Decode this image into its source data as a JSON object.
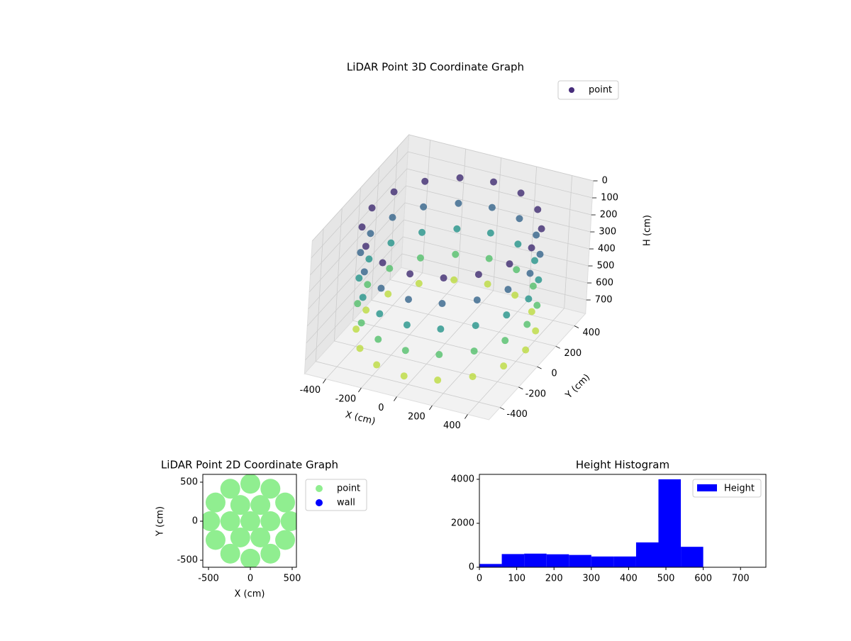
{
  "chart_data": [
    {
      "type": "scatter3d",
      "title": "LiDAR Point 3D Coordinate Graph",
      "xlabel": "X (cm)",
      "ylabel": "Y (cm)",
      "zlabel": "H (cm)",
      "xlim": [
        -520,
        520
      ],
      "ylim": [
        -520,
        520
      ],
      "zlim": [
        0,
        780
      ],
      "zinverted": true,
      "xticks": [
        -400,
        -200,
        0,
        200,
        400
      ],
      "yticks": [
        -400,
        -200,
        0,
        200,
        400
      ],
      "zticks": [
        0,
        100,
        200,
        300,
        400,
        500,
        600,
        700
      ],
      "grid": true,
      "legend": "upper right",
      "colormap": "viridis",
      "series": [
        {
          "name": "point",
          "color": "#472d7b",
          "x": [
            450,
            416,
            318,
            172,
            0,
            -172,
            -318,
            -416,
            -450,
            -416,
            -318,
            -172,
            0,
            172,
            318,
            416,
            450,
            416,
            318,
            172,
            0,
            -172,
            -318,
            -416,
            -450,
            -416,
            -318,
            -172,
            0,
            172,
            318,
            416,
            450,
            416,
            318,
            172,
            0,
            -172,
            -318,
            -416,
            -450,
            -416,
            -318,
            -172,
            0,
            172,
            318,
            416,
            450,
            416,
            318,
            172,
            0,
            -172,
            -318,
            -416,
            -450,
            -416,
            -318,
            -172,
            0,
            172,
            318,
            416,
            450,
            416,
            318,
            172,
            0,
            -172,
            -318,
            -416,
            -450,
            -416,
            -318,
            -172,
            0,
            172,
            318,
            416
          ],
          "y": [
            0,
            172,
            318,
            416,
            450,
            416,
            318,
            172,
            0,
            -172,
            -318,
            -416,
            -450,
            -416,
            -318,
            -172,
            0,
            172,
            318,
            416,
            450,
            416,
            318,
            172,
            0,
            -172,
            -318,
            -416,
            -450,
            -416,
            -318,
            -172,
            0,
            172,
            318,
            416,
            450,
            416,
            318,
            172,
            0,
            -172,
            -318,
            -416,
            -450,
            -416,
            -318,
            -172,
            0,
            172,
            318,
            416,
            450,
            416,
            318,
            172,
            0,
            -172,
            -318,
            -416,
            -450,
            -416,
            -318,
            -172,
            0,
            172,
            318,
            416,
            450,
            416,
            318,
            172,
            0,
            -172,
            -318,
            -416,
            -450,
            -416,
            -318,
            -172
          ],
          "h": [
            100,
            100,
            100,
            100,
            100,
            100,
            100,
            100,
            100,
            100,
            100,
            100,
            100,
            100,
            100,
            100,
            250,
            250,
            250,
            250,
            250,
            250,
            250,
            250,
            250,
            250,
            250,
            250,
            250,
            250,
            250,
            250,
            400,
            400,
            400,
            400,
            400,
            400,
            400,
            400,
            400,
            400,
            400,
            400,
            400,
            400,
            400,
            400,
            550,
            550,
            550,
            550,
            550,
            550,
            550,
            550,
            550,
            550,
            550,
            550,
            550,
            550,
            550,
            550,
            700,
            700,
            700,
            700,
            700,
            700,
            700,
            700,
            700,
            700,
            700,
            700,
            700,
            700,
            700,
            700
          ]
        }
      ]
    },
    {
      "type": "scatter",
      "title": "LiDAR Point 2D Coordinate Graph",
      "xlabel": "X (cm)",
      "ylabel": "Y (cm)",
      "xlim": [
        -568,
        551
      ],
      "ylim": [
        -590,
        600
      ],
      "xticks": [
        -500,
        0,
        500
      ],
      "yticks": [
        -500,
        0,
        500
      ],
      "legend": "outside right",
      "series": [
        {
          "name": "point",
          "color": "#90ee90",
          "x": [
            480,
            416,
            240,
            0,
            -240,
            -416,
            -480,
            -416,
            -240,
            0,
            240,
            416,
            240,
            120,
            -120,
            -240,
            -120,
            120,
            0
          ],
          "y": [
            0,
            240,
            416,
            480,
            416,
            240,
            0,
            -240,
            -416,
            -480,
            -416,
            -240,
            0,
            208,
            208,
            0,
            -208,
            -208,
            0
          ]
        },
        {
          "name": "wall",
          "color": "#0000ff",
          "x": [],
          "y": []
        }
      ]
    },
    {
      "type": "histogram",
      "title": "Height Histogram",
      "xlim": [
        0,
        768
      ],
      "ylim": [
        0,
        4225
      ],
      "xticks": [
        0,
        100,
        200,
        300,
        400,
        500,
        600,
        700
      ],
      "yticks": [
        0,
        2000,
        4000
      ],
      "legend": "upper right",
      "bins": [
        0,
        60,
        120,
        180,
        240,
        300,
        360,
        420,
        480,
        540,
        600,
        660,
        720
      ],
      "series": [
        {
          "name": "Height",
          "color": "#0000ff",
          "values": [
            150,
            600,
            620,
            590,
            560,
            490,
            490,
            1130,
            4000,
            930,
            0,
            0
          ]
        }
      ]
    }
  ]
}
